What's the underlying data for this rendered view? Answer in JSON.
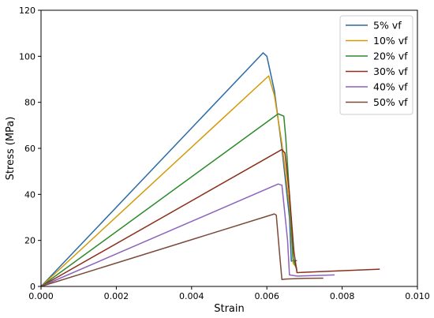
{
  "chart_data": {
    "type": "line",
    "xlabel": "Strain",
    "ylabel": "Stress (MPa)",
    "xlim": [
      0,
      0.01
    ],
    "ylim": [
      0,
      120
    ],
    "xticks": [
      "0.000",
      "0.002",
      "0.004",
      "0.006",
      "0.008",
      "0.010"
    ],
    "yticks": [
      "0",
      "20",
      "40",
      "60",
      "80",
      "100",
      "120"
    ],
    "grid": false,
    "legend_position": "top-right",
    "series": [
      {
        "name": "5% vf",
        "color": "#2a6aa6",
        "x": [
          0,
          0.0059,
          0.006,
          0.0062,
          0.0064,
          0.0066,
          0.00665,
          0.0067,
          0.0068
        ],
        "y": [
          0,
          101.5,
          100.0,
          85,
          60,
          30,
          11.0,
          11.2,
          11.2
        ]
      },
      {
        "name": "10% vf",
        "color": "#d19a09",
        "x": [
          0,
          0.00605,
          0.0062,
          0.0064,
          0.0066,
          0.0067,
          0.0068
        ],
        "y": [
          0,
          91.5,
          83,
          62,
          35,
          10,
          8
        ]
      },
      {
        "name": "20% vf",
        "color": "#2d8a2d",
        "x": [
          0,
          0.0063,
          0.00645,
          0.0065,
          0.0066,
          0.0067,
          0.0068
        ],
        "y": [
          0,
          75,
          74,
          65,
          40,
          12,
          7
        ]
      },
      {
        "name": "30% vf",
        "color": "#8c2f1d",
        "x": [
          0,
          0.0064,
          0.00648,
          0.0066,
          0.00672,
          0.0068,
          0.009
        ],
        "y": [
          0,
          59.5,
          58,
          40,
          15,
          6,
          7.5
        ]
      },
      {
        "name": "40% vf",
        "color": "#8a63bd",
        "x": [
          0,
          0.0063,
          0.0064,
          0.00655,
          0.0066,
          0.0068,
          0.0078
        ],
        "y": [
          0,
          44.5,
          44,
          20,
          5,
          4.5,
          5
        ]
      },
      {
        "name": "50% vf",
        "color": "#7a4a3a",
        "x": [
          0,
          0.0062,
          0.00625,
          0.00635,
          0.0064,
          0.0065,
          0.007,
          0.0075
        ],
        "y": [
          0,
          31.5,
          31,
          12,
          3,
          3.2,
          3.5,
          3.6
        ]
      }
    ]
  }
}
